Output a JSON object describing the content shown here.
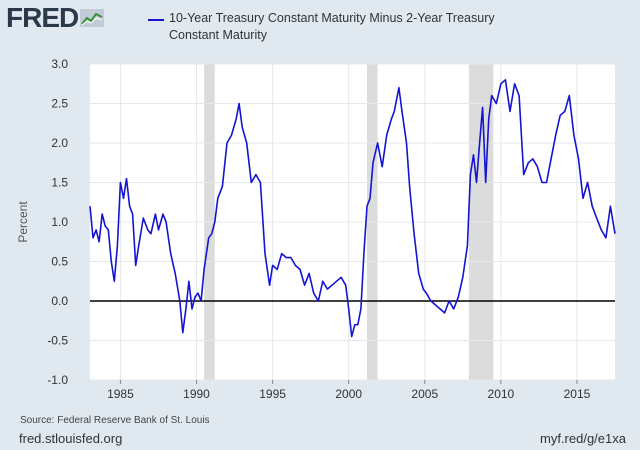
{
  "brand": {
    "name": "FRED",
    "icon": "line-graph-icon"
  },
  "colors": {
    "series": "#1414d2",
    "recession": "#dcdcdc",
    "zero_line": "#000000",
    "background": "#e1e9f0",
    "plot_bg": "#ffffff"
  },
  "footer": {
    "source": "Source: Federal Reserve Bank of St. Louis",
    "site": "fred.stlouisfed.org",
    "short_url": "myf.red/g/e1xa"
  },
  "chart_data": {
    "type": "line",
    "title": "",
    "xlabel": "",
    "ylabel": "Percent",
    "xlim": [
      1983.0,
      2017.5
    ],
    "ylim": [
      -1.0,
      3.0
    ],
    "x_ticks": [
      "1985",
      "1990",
      "1995",
      "2000",
      "2005",
      "2010",
      "2015"
    ],
    "y_ticks": [
      "-1.0",
      "-0.5",
      "0.0",
      "0.5",
      "1.0",
      "1.5",
      "2.0",
      "2.5",
      "3.0"
    ],
    "grid": true,
    "legend_position": "top",
    "recessions": [
      [
        1990.5,
        1991.2
      ],
      [
        2001.2,
        2001.9
      ],
      [
        2007.9,
        2009.5
      ]
    ],
    "series": [
      {
        "name": "10-Year Treasury Constant Maturity Minus 2-Year Treasury Constant Maturity",
        "x": [
          1983.0,
          1983.2,
          1983.4,
          1983.6,
          1983.8,
          1984.0,
          1984.2,
          1984.4,
          1984.6,
          1984.8,
          1985.0,
          1985.2,
          1985.4,
          1985.6,
          1985.8,
          1986.0,
          1986.2,
          1986.5,
          1986.8,
          1987.0,
          1987.3,
          1987.5,
          1987.8,
          1988.0,
          1988.3,
          1988.6,
          1988.9,
          1989.1,
          1989.3,
          1989.5,
          1989.7,
          1989.9,
          1990.1,
          1990.3,
          1990.5,
          1990.8,
          1991.0,
          1991.2,
          1991.4,
          1991.7,
          1992.0,
          1992.3,
          1992.6,
          1992.8,
          1993.0,
          1993.3,
          1993.6,
          1993.9,
          1994.2,
          1994.5,
          1994.8,
          1995.0,
          1995.3,
          1995.6,
          1995.9,
          1996.2,
          1996.5,
          1996.8,
          1997.1,
          1997.4,
          1997.7,
          1998.0,
          1998.3,
          1998.6,
          1998.9,
          1999.2,
          1999.5,
          1999.8,
          2000.0,
          2000.2,
          2000.4,
          2000.6,
          2000.8,
          2001.0,
          2001.2,
          2001.4,
          2001.6,
          2001.9,
          2002.2,
          2002.5,
          2002.8,
          2003.0,
          2003.3,
          2003.5,
          2003.8,
          2004.0,
          2004.3,
          2004.6,
          2004.9,
          2005.1,
          2005.4,
          2005.7,
          2006.0,
          2006.3,
          2006.6,
          2006.9,
          2007.2,
          2007.5,
          2007.8,
          2008.0,
          2008.2,
          2008.4,
          2008.6,
          2008.8,
          2009.0,
          2009.2,
          2009.4,
          2009.7,
          2010.0,
          2010.3,
          2010.6,
          2010.9,
          2011.2,
          2011.5,
          2011.8,
          2012.1,
          2012.4,
          2012.7,
          2013.0,
          2013.3,
          2013.6,
          2013.9,
          2014.2,
          2014.5,
          2014.8,
          2015.1,
          2015.4,
          2015.7,
          2016.0,
          2016.3,
          2016.6,
          2016.9,
          2017.2,
          2017.5
        ],
        "values": [
          1.2,
          0.8,
          0.9,
          0.75,
          1.1,
          0.95,
          0.9,
          0.5,
          0.25,
          0.7,
          1.5,
          1.3,
          1.55,
          1.2,
          1.1,
          0.45,
          0.7,
          1.05,
          0.9,
          0.85,
          1.1,
          0.9,
          1.1,
          1.0,
          0.6,
          0.35,
          0.0,
          -0.4,
          -0.1,
          0.25,
          -0.1,
          0.05,
          0.1,
          0.0,
          0.4,
          0.8,
          0.85,
          1.0,
          1.3,
          1.45,
          2.0,
          2.1,
          2.3,
          2.5,
          2.2,
          2.0,
          1.5,
          1.6,
          1.5,
          0.6,
          0.2,
          0.45,
          0.4,
          0.6,
          0.55,
          0.55,
          0.45,
          0.4,
          0.2,
          0.35,
          0.1,
          0.0,
          0.25,
          0.15,
          0.2,
          0.25,
          0.3,
          0.2,
          -0.1,
          -0.45,
          -0.3,
          -0.3,
          -0.1,
          0.6,
          1.2,
          1.3,
          1.75,
          2.0,
          1.7,
          2.1,
          2.3,
          2.4,
          2.7,
          2.4,
          2.0,
          1.45,
          0.85,
          0.35,
          0.15,
          0.1,
          0.0,
          -0.05,
          -0.1,
          -0.15,
          0.0,
          -0.1,
          0.05,
          0.3,
          0.7,
          1.6,
          1.85,
          1.5,
          2.0,
          2.45,
          1.5,
          2.3,
          2.6,
          2.5,
          2.75,
          2.8,
          2.4,
          2.75,
          2.6,
          1.6,
          1.75,
          1.8,
          1.7,
          1.5,
          1.5,
          1.8,
          2.1,
          2.35,
          2.4,
          2.6,
          2.1,
          1.8,
          1.3,
          1.5,
          1.2,
          1.05,
          0.9,
          0.8,
          1.2,
          0.85
        ]
      }
    ]
  }
}
